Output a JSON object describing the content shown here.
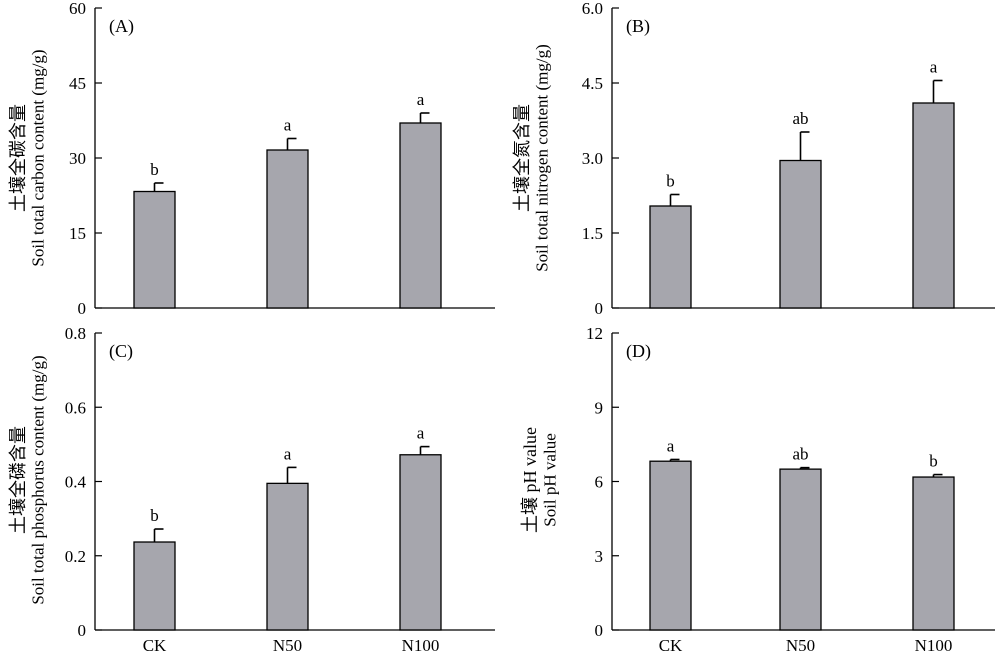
{
  "chart_data": [
    {
      "panel": "(A)",
      "type": "bar",
      "ylabel_cn": "土壤全碳含量",
      "ylabel_en": "Soil total carbon content (mg/g)",
      "ylim": [
        0,
        60
      ],
      "yticks": [
        "0",
        "15",
        "30",
        "45",
        "60"
      ],
      "categories": [
        "CK",
        "N50",
        "N100"
      ],
      "show_categories": false,
      "values": [
        23.3,
        31.6,
        37.0
      ],
      "errors": [
        1.7,
        2.3,
        2.0
      ],
      "significance": [
        "b",
        "a",
        "a"
      ],
      "bar_color": "#a6a6ad"
    },
    {
      "panel": "(B)",
      "type": "bar",
      "ylabel_cn": "土壤全氮含量",
      "ylabel_en": "Soil total nitrogen content (mg/g)",
      "ylim": [
        0,
        6.0
      ],
      "yticks": [
        "0",
        "1.5",
        "3.0",
        "4.5",
        "6.0"
      ],
      "categories": [
        "CK",
        "N50",
        "N100"
      ],
      "show_categories": false,
      "values": [
        2.04,
        2.95,
        4.1
      ],
      "errors": [
        0.23,
        0.57,
        0.45
      ],
      "significance": [
        "b",
        "ab",
        "a"
      ],
      "bar_color": "#a6a6ad"
    },
    {
      "panel": "(C)",
      "type": "bar",
      "ylabel_cn": "土壤全磷含量",
      "ylabel_en": "Soil total phosphorus content (mg/g)",
      "ylim": [
        0,
        0.8
      ],
      "yticks": [
        "0",
        "0.2",
        "0.4",
        "0.6",
        "0.8"
      ],
      "categories": [
        "CK",
        "N50",
        "N100"
      ],
      "show_categories": true,
      "values": [
        0.237,
        0.395,
        0.472
      ],
      "errors": [
        0.035,
        0.043,
        0.022
      ],
      "significance": [
        "b",
        "a",
        "a"
      ],
      "bar_color": "#a6a6ad"
    },
    {
      "panel": "(D)",
      "type": "bar",
      "ylabel_cn": "土壤 pH value",
      "ylabel_en": "Soil pH value",
      "ylim": [
        0,
        12
      ],
      "yticks": [
        "0",
        "3",
        "6",
        "9",
        "12"
      ],
      "categories": [
        "CK",
        "N50",
        "N100"
      ],
      "show_categories": true,
      "values": [
        6.82,
        6.5,
        6.18
      ],
      "errors": [
        0.07,
        0.06,
        0.1
      ],
      "significance": [
        "a",
        "ab",
        "b"
      ],
      "bar_color": "#a6a6ad"
    }
  ]
}
